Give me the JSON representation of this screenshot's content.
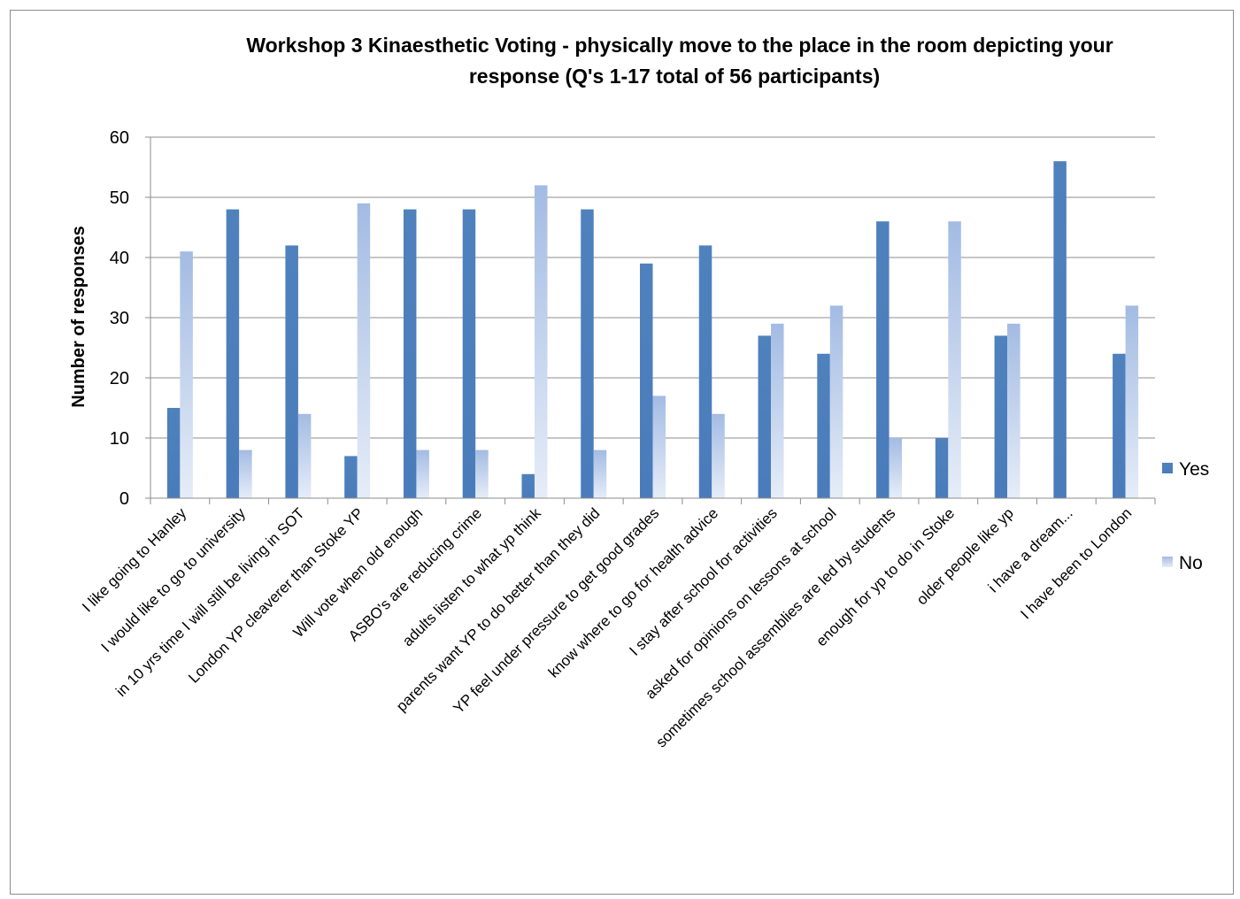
{
  "chart_data": {
    "type": "bar",
    "title": "Workshop 3 Kinaesthetic Voting - physically move to the place in the room depicting your response (Q's 1-17    total of 56 participants)",
    "title_lines": [
      "Workshop 3 Kinaesthetic Voting - physically move to the place in the room depicting your",
      "response (Q's 1-17    total of 56 participants)"
    ],
    "xlabel": "",
    "ylabel": "Number of responses",
    "ylim": [
      0,
      60
    ],
    "yticks": [
      "0",
      "10",
      "20",
      "30",
      "40",
      "50",
      "60"
    ],
    "grid": true,
    "legend_position": "right",
    "categories": [
      "I like going to Hanley",
      "I would like to go to university",
      "in 10 yrs time I will still be living in SOT",
      "London YP cleaverer than Stoke YP",
      "Will vote when old enough",
      "ASBO's are reducing crime",
      "adults listen to what yp think",
      "parents want YP to do better than they did",
      "YP feel under pressure to get good grades",
      "know where to go for health advice",
      "I stay after school for activities",
      "asked for opinions on lessons at  school",
      "sometimes school assemblies are led by students",
      "enough for yp to do in Stoke",
      "older people like yp",
      "i have a dream...",
      "I have been to London"
    ],
    "series": [
      {
        "name": "Yes",
        "color": "#4f81bd",
        "values": [
          15,
          48,
          42,
          7,
          48,
          48,
          4,
          48,
          39,
          42,
          27,
          24,
          46,
          10,
          27,
          56,
          24
        ]
      },
      {
        "name": "No",
        "color": "#a7bfe6",
        "values": [
          41,
          8,
          14,
          49,
          8,
          8,
          52,
          8,
          17,
          14,
          29,
          32,
          10,
          46,
          29,
          0,
          32
        ]
      }
    ]
  }
}
